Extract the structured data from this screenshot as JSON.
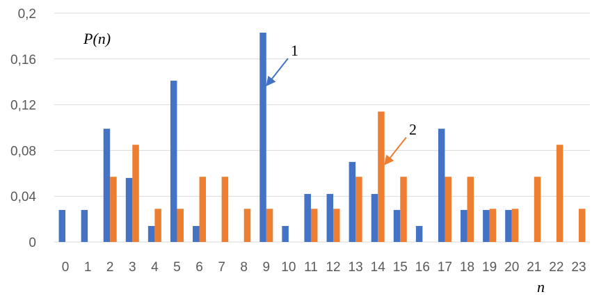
{
  "chart_data": {
    "type": "bar",
    "title": "",
    "ylabel": "P(n)",
    "xlabel": "n",
    "ylim": [
      0,
      0.2
    ],
    "yticks": [
      "0",
      "0,04",
      "0,08",
      "0,12",
      "0,16",
      "0,2"
    ],
    "grid": true,
    "categories": [
      "0",
      "1",
      "2",
      "3",
      "4",
      "5",
      "6",
      "7",
      "8",
      "9",
      "10",
      "11",
      "12",
      "13",
      "14",
      "15",
      "16",
      "17",
      "18",
      "19",
      "20",
      "21",
      "22",
      "23"
    ],
    "series": [
      {
        "name": "1",
        "color": "#4472C4",
        "values": [
          0.028,
          0.028,
          0.099,
          0.056,
          0.014,
          0.141,
          0.014,
          0,
          0,
          0.183,
          0.014,
          0.042,
          0.042,
          0.07,
          0.042,
          0.028,
          0.014,
          0.099,
          0.028,
          0.028,
          0.028,
          0,
          0,
          0
        ]
      },
      {
        "name": "2",
        "color": "#ED7D31",
        "values": [
          0,
          0,
          0.057,
          0.085,
          0.029,
          0.029,
          0.057,
          0.057,
          0.029,
          0.029,
          0,
          0.029,
          0.029,
          0.057,
          0.114,
          0.057,
          0,
          0.057,
          0.057,
          0.029,
          0.029,
          0.057,
          0.085,
          0.029
        ]
      }
    ],
    "annotations": [
      {
        "text": "1",
        "series": 0,
        "category": "9"
      },
      {
        "text": "2",
        "series": 1,
        "category": "14"
      }
    ]
  }
}
